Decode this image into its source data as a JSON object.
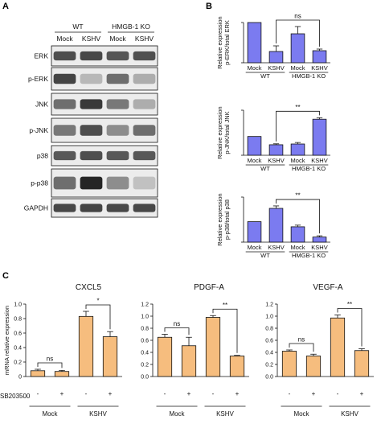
{
  "panels": {
    "a_label": "A",
    "b_label": "B",
    "c_label": "C"
  },
  "blot": {
    "group_wt": "WT",
    "group_ko": "HMGB-1 KO",
    "lanes": [
      "Mock",
      "KSHV",
      "Mock",
      "KSHV"
    ],
    "rows": [
      "ERK",
      "p-ERK",
      "JNK",
      "p-JNK",
      "p38",
      "p-p38",
      "GAPDH"
    ],
    "band_intensity": [
      [
        0.75,
        0.78,
        0.72,
        0.74
      ],
      [
        0.8,
        0.25,
        0.6,
        0.3
      ],
      [
        0.6,
        0.85,
        0.55,
        0.3
      ],
      [
        0.55,
        0.75,
        0.45,
        0.6
      ],
      [
        0.7,
        0.75,
        0.7,
        0.7
      ],
      [
        0.6,
        0.95,
        0.45,
        0.2
      ],
      [
        0.78,
        0.8,
        0.78,
        0.78
      ]
    ]
  },
  "colors": {
    "panel_b_bar": "#7b7bf0",
    "panel_c_bar": "#f6bd7e",
    "axis": "#111111",
    "band": "#1a1a1a"
  },
  "chart_data": [
    {
      "type": "bar",
      "panel": "B",
      "ylabel": "Relative expression\np-ERK/total ERK",
      "categories": [
        "Mock",
        "KSHV",
        "Mock",
        "KSHV"
      ],
      "groups": [
        "WT",
        "HMGB-1 KO"
      ],
      "values": [
        1.0,
        0.28,
        0.72,
        0.3
      ],
      "errors": [
        0.0,
        0.14,
        0.18,
        0.04
      ],
      "ylim": [
        0,
        1.0
      ],
      "significance": [
        {
          "from": 1,
          "to": 3,
          "label": "ns"
        }
      ]
    },
    {
      "type": "bar",
      "panel": "B",
      "ylabel": "Relative expression\np-JNK/total JNK",
      "categories": [
        "Mock",
        "KSHV",
        "Mock",
        "KSHV"
      ],
      "groups": [
        "WT",
        "HMGB-1 KO"
      ],
      "values": [
        1.0,
        0.56,
        0.6,
        1.92
      ],
      "errors": [
        0.0,
        0.05,
        0.08,
        0.08
      ],
      "ylim": [
        0,
        2.4
      ],
      "significance": [
        {
          "from": 1,
          "to": 3,
          "label": "**"
        }
      ]
    },
    {
      "type": "bar",
      "panel": "B",
      "ylabel": "Relative expression\np-p38/total p38",
      "categories": [
        "Mock",
        "KSHV",
        "Mock",
        "KSHV"
      ],
      "groups": [
        "WT",
        "HMGB-1 KO"
      ],
      "values": [
        1.0,
        1.65,
        0.75,
        0.25
      ],
      "errors": [
        0.0,
        0.12,
        0.08,
        0.06
      ],
      "ylim": [
        0,
        2.2
      ],
      "significance": [
        {
          "from": 1,
          "to": 3,
          "label": "**"
        }
      ]
    },
    {
      "type": "bar",
      "panel": "C",
      "title": "CXCL5",
      "ylabel": "mRNA relative expression",
      "yticks": [
        "0",
        "0.2",
        "0.4",
        "0.6",
        "0.8",
        "1.0"
      ],
      "ylim": [
        0,
        1.0
      ],
      "row_label": "SB203500",
      "treatment": [
        "-",
        "+",
        "-",
        "+"
      ],
      "groups": [
        "Mock",
        "KSHV"
      ],
      "values": [
        0.08,
        0.07,
        0.83,
        0.55
      ],
      "errors": [
        0.02,
        0.015,
        0.07,
        0.07
      ],
      "significance": [
        {
          "from": 0,
          "to": 1,
          "label": "ns"
        },
        {
          "from": 2,
          "to": 3,
          "label": "*"
        }
      ]
    },
    {
      "type": "bar",
      "panel": "C",
      "title": "PDGF-A",
      "ylim": [
        0,
        1.2
      ],
      "yticks": [
        "0.0",
        "0.2",
        "0.4",
        "0.6",
        "0.8",
        "1.0",
        "1.2"
      ],
      "treatment": [
        "-",
        "+",
        "-",
        "+"
      ],
      "groups": [
        "Mock",
        "KSHV"
      ],
      "values": [
        0.65,
        0.51,
        0.98,
        0.34
      ],
      "errors": [
        0.05,
        0.14,
        0.03,
        0.01
      ],
      "significance": [
        {
          "from": 0,
          "to": 1,
          "label": "ns"
        },
        {
          "from": 2,
          "to": 3,
          "label": "**"
        }
      ]
    },
    {
      "type": "bar",
      "panel": "C",
      "title": "VEGF-A",
      "ylim": [
        0,
        1.2
      ],
      "yticks": [
        "0.0",
        "0.2",
        "0.4",
        "0.6",
        "0.8",
        "1.0",
        "1.2"
      ],
      "treatment": [
        "-",
        "+",
        "-",
        "+"
      ],
      "groups": [
        "Mock",
        "KSHV"
      ],
      "values": [
        0.42,
        0.34,
        0.97,
        0.43
      ],
      "errors": [
        0.02,
        0.03,
        0.05,
        0.03
      ],
      "significance": [
        {
          "from": 0,
          "to": 1,
          "label": "ns"
        },
        {
          "from": 2,
          "to": 3,
          "label": "**"
        }
      ]
    }
  ]
}
